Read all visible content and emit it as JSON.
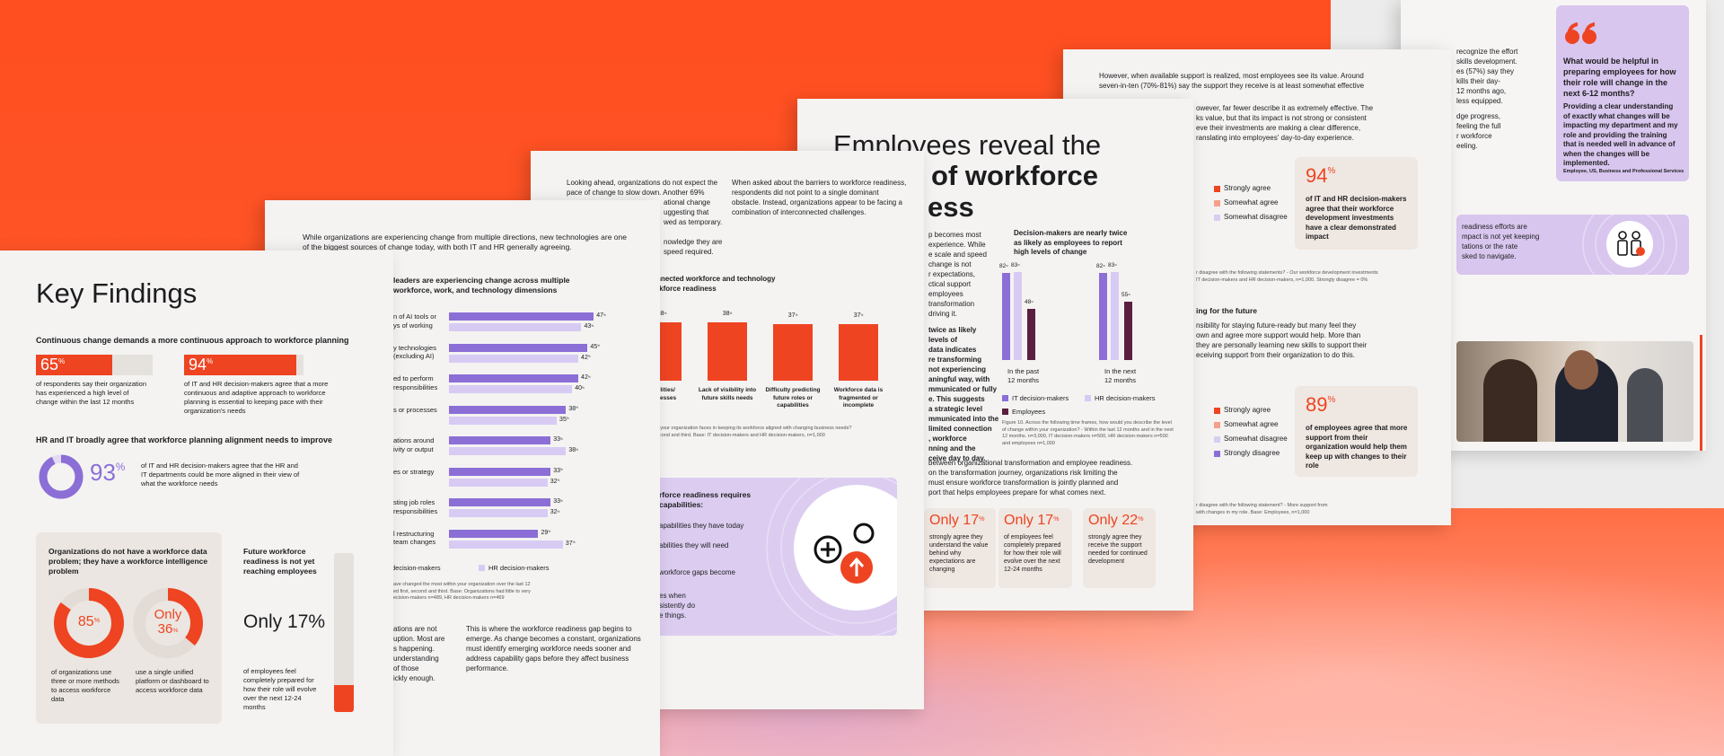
{
  "key_findings": {
    "title": "Key Findings",
    "section_1": {
      "heading": "Continuous change demands a more continuous approach to workforce planning",
      "stats": [
        {
          "value": 65,
          "unit": "%",
          "text": "of respondents say their organization has experienced a high level of change within the last 12 months"
        },
        {
          "value": 94,
          "unit": "%",
          "text": "of IT and HR decision-makers agree that a more continuous and adaptive approach to workforce planning is essential to keeping pace with their organization's needs"
        }
      ]
    },
    "section_2": {
      "heading": "HR and IT broadly agree that workforce planning alignment needs to improve",
      "stat": {
        "value": 93,
        "unit": "%",
        "text": "of IT and HR decision-makers agree that the HR and IT departments could be more aligned in their view of what the workforce needs"
      }
    },
    "data_box": {
      "heading": "Organizations do not have a workforce data problem; they have a workforce intelligence problem",
      "donuts": [
        {
          "value": 85,
          "unit": "%",
          "text": "of organizations use three or more methods to access workforce data"
        },
        {
          "prefix": "Only",
          "value": 36,
          "unit": "%",
          "text": "use a single unified platform or dashboard to access workforce data"
        }
      ]
    },
    "readiness_box": {
      "heading": "Future workforce readiness is not yet reaching employees",
      "stat": {
        "prefix": "Only",
        "value": 17,
        "unit": "%",
        "text": "of employees feel completely prepared for how their role will evolve over the next 12-24 months"
      }
    }
  },
  "change_page": {
    "intro": "While organizations are experiencing change from multiple directions, new technologies are one of the biggest sources of change today, with both IT and HR generally agreeing.",
    "chart": {
      "title": "leaders are experiencing change across multiple\nworkforce, work, and technology dimensions",
      "unit": "%",
      "categories": [
        "n of AI tools or\nys of working",
        "y technologies\n(excluding AI)",
        "ed to perform\nresponsibilities",
        "s or processes",
        "ations around\nivity or output",
        "es or strategy",
        "sting job roles\nresponsibilities",
        "l restructuring\nteam changes"
      ],
      "series": [
        {
          "name": "decision-makers",
          "color": "#8b6fd6",
          "values": [
            47,
            45,
            42,
            38,
            33,
            33,
            33,
            29
          ]
        },
        {
          "name": "HR decision-makers",
          "color": "#d8cbf3",
          "values": [
            43,
            42,
            40,
            35,
            38,
            32,
            32,
            37
          ]
        }
      ],
      "note": "ave changed the most within your organization over the last 12\ned first, second and third. Base: Organizations had little to very\necision-makers n=489, HR decision-makers n=469"
    },
    "text_left": "ations are not\nuption. Most are\ns happening.\nunderstanding\nof those\nickly enough.",
    "text_right": "This is where the workforce readiness gap begins to emerge. As change becomes a constant, organizations must identify emerging workforce needs sooner and address capability gaps before they affect business performance."
  },
  "barriers_page": {
    "col_1": "Looking ahead, organizations do not expect the pace of change to slow down. Another 69%",
    "col_1_fragments": "ational change\nuggesting that\nwed as temporary.\n\nnowledge they are\nspeed required.",
    "col_2": "When asked about the barriers to workforce readiness, respondents did not point to a single dominant obstacle. Instead, organizations appear to be facing a combination of interconnected challenges.",
    "chart": {
      "title": "nnected workforce and technology\nrkforce readiness",
      "unit": "%",
      "color": "#ee4422",
      "categories": [
        "pabilities/\nprocesses",
        "Lack of visibility into future skills needs",
        "Difficulty predicting future roles or capabilities",
        "Workforce data is fragmented or incomplete"
      ],
      "values": [
        38,
        38,
        37,
        37
      ],
      "note": "s your organization faces in keeping its workforce aligned with changing business needs?\necond and third. Base: IT decision-makers and HR decision-makers, n=1,000"
    },
    "callout": {
      "heading": "rforce readiness requires\ncapabilities:",
      "items": [
        "apabilities they have today",
        "abilities they will need",
        "workforce gaps become",
        "es when\nsistently do\ne things."
      ]
    }
  },
  "employees_page": {
    "heading_1": "Employees reveal the",
    "heading_2": "of workforce",
    "heading_3": "ess",
    "fragments_1": "p becomes most\nexperience. While\ne scale and speed\nchange is not\nr expectations,\nctical support\nemployees\ntransformation\ndriving it.",
    "fragments_2": "twice as likely\nlevels of\ndata indicates\nre transforming\nnot experiencing\naningful way, with\nmmunicated or fully\ne. This suggests\na strategic level\nmmunicated into the\nlimited connection\n, workforce\nnning and the\nceive day to day.",
    "chart": {
      "title": "Decision-makers are nearly twice as likely as employees to report high levels of change",
      "unit": "%",
      "categories": [
        "In the past\n12 months",
        "In the next\n12 months"
      ],
      "series": [
        {
          "name": "IT decision-makers",
          "color": "#8b6fd6",
          "values": [
            82,
            82
          ]
        },
        {
          "name": "HR decision-makers",
          "color": "#d8cbf3",
          "values": [
            83,
            83
          ]
        },
        {
          "name": "Employees",
          "color": "#5a1f3f",
          "values": [
            48,
            55
          ]
        }
      ],
      "note": "Figure 10. Across the following time frames, how would you describe the level of change within your organization? - Within the last 12 months and in the next 12 months. n=3,000, IT decision-makers n=500, HR decision-makers n=500 and employees n=1,000"
    },
    "paragraph": "between organizational transformation and employee readiness.\non the transformation journey, organizations risk limiting the\nmust ensure workforce transformation is jointly planned and\nport that helps employees prepare for what comes next.",
    "boxes": [
      {
        "prefix": "Only",
        "value": 17,
        "unit": "%",
        "text": "strongly agree they understand the value behind why expectations are changing"
      },
      {
        "prefix": "Only",
        "value": 17,
        "unit": "%",
        "text": "of employees feel completely prepared for how their role will evolve over the next 12-24 months"
      },
      {
        "prefix": "Only",
        "value": 22,
        "unit": "%",
        "text": "strongly agree they receive the support needed for continued development"
      }
    ]
  },
  "support_page": {
    "paragraph": "However, when available support is realized, most employees see its value. Around\nseven-in-ten (70%-81%) say the support they receive is at least somewhat effective",
    "fragments": "owever, far fewer describe it as extremely effective. The\nks value, but that its impact is not strong or consistent\neve their investments are making a clear difference,\nranslating into employees' day-to-day experience.",
    "legend_1": [
      {
        "name": "Strongly agree",
        "color": "#ee4422"
      },
      {
        "name": "Somewhat agree",
        "color": "#f5a08a"
      },
      {
        "name": "Somewhat disagree",
        "color": "#d9cdf0"
      }
    ],
    "stat_1": {
      "value": 94,
      "unit": "%",
      "text": "of IT and HR decision-makers agree that their workforce development investments have a clear demonstrated impact"
    },
    "note_1": "r disagree with the following statements? - Our workforce development investments\nIT decision-makers and HR decision-makers, n=1,000. Strongly disagree = 0%",
    "heading": "ing for the future",
    "paragraph_2": "nsibility for staying future-ready but many feel they\nown and agree more support would help. More than\nthey are personally learning new skills to support their\neceiving support from their organization to do this.",
    "legend_2": [
      {
        "name": "Strongly agree",
        "color": "#ee4422"
      },
      {
        "name": "Somewhat agree",
        "color": "#f5a08a"
      },
      {
        "name": "Somewhat disagree",
        "color": "#d9cdf0"
      },
      {
        "name": "Strongly disagree",
        "color": "#8b6fd6"
      }
    ],
    "stat_2": {
      "value": 89,
      "unit": "%",
      "text": "of employees agree that more support from their organization would help them keep up with changes to their role"
    },
    "note_2": "r disagree with the following statement? - More support from\nwith changes in my role. Base: Employees, n=1,000"
  },
  "quote_page": {
    "column_1": "recognize the effort\nskills development.\nes (57%) say they\nkills their day-\n12 months ago,\nless equipped.",
    "column_2": "dge progress,\nfeeling the full\nr workforce\neeling.",
    "quote": {
      "question": "What would be helpful in preparing employees for how their role will change in the next 6-12 months?",
      "answer": "Providing a clear understanding of exactly what changes will be impacting my department and my role and providing the training that is needed well in advance of when the changes will be implemented.",
      "attribution": "Employee, US, Business and Professional Services"
    },
    "banner": "readiness efforts are\nmpact is not yet keeping\ntations or the rate\nsked to navigate."
  }
}
